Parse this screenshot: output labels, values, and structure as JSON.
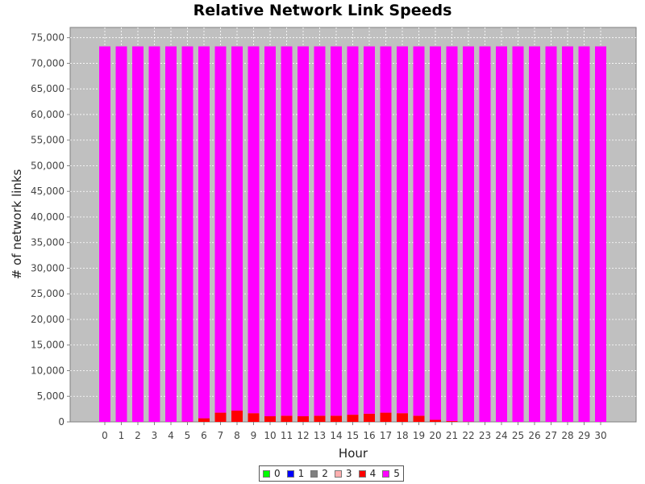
{
  "chart_data": {
    "type": "bar",
    "stacked": true,
    "title": "Relative Network Link Speeds",
    "xlabel": "Hour",
    "ylabel": "# of network links",
    "ylim": [
      0,
      77000
    ],
    "yticks": [
      0,
      5000,
      10000,
      15000,
      20000,
      25000,
      30000,
      35000,
      40000,
      45000,
      50000,
      55000,
      60000,
      65000,
      70000,
      75000
    ],
    "ytick_labels": [
      "0",
      "5,000",
      "10,000",
      "15,000",
      "20,000",
      "25,000",
      "30,000",
      "35,000",
      "40,000",
      "45,000",
      "50,000",
      "55,000",
      "60,000",
      "65,000",
      "70,000",
      "75,000"
    ],
    "categories": [
      "0",
      "1",
      "2",
      "3",
      "4",
      "5",
      "6",
      "7",
      "8",
      "9",
      "10",
      "11",
      "12",
      "13",
      "14",
      "15",
      "16",
      "17",
      "18",
      "19",
      "20",
      "21",
      "22",
      "23",
      "24",
      "25",
      "26",
      "27",
      "28",
      "29",
      "30"
    ],
    "series": [
      {
        "name": "0",
        "color": "#00ff00",
        "values": [
          0,
          0,
          0,
          0,
          0,
          0,
          0,
          0,
          0,
          0,
          0,
          0,
          0,
          0,
          0,
          0,
          0,
          0,
          0,
          0,
          0,
          0,
          0,
          0,
          0,
          0,
          0,
          0,
          0,
          0,
          0
        ]
      },
      {
        "name": "1",
        "color": "#0000ff",
        "values": [
          0,
          0,
          0,
          0,
          0,
          0,
          0,
          0,
          0,
          0,
          0,
          0,
          0,
          0,
          0,
          0,
          0,
          0,
          0,
          0,
          0,
          0,
          0,
          0,
          0,
          0,
          0,
          0,
          0,
          0,
          0
        ]
      },
      {
        "name": "2",
        "color": "#808080",
        "values": [
          0,
          0,
          0,
          0,
          0,
          0,
          0,
          0,
          0,
          0,
          0,
          0,
          0,
          0,
          0,
          0,
          0,
          0,
          0,
          0,
          0,
          0,
          0,
          0,
          0,
          0,
          0,
          0,
          0,
          0,
          0
        ]
      },
      {
        "name": "3",
        "color": "#ffafaf",
        "values": [
          0,
          0,
          0,
          0,
          0,
          0,
          0,
          0,
          0,
          0,
          0,
          0,
          0,
          0,
          0,
          0,
          0,
          0,
          0,
          0,
          0,
          0,
          0,
          0,
          0,
          0,
          0,
          0,
          0,
          0,
          0
        ]
      },
      {
        "name": "4",
        "color": "#ff0000",
        "values": [
          0,
          0,
          0,
          0,
          0,
          50,
          700,
          1800,
          2200,
          1700,
          1100,
          1200,
          1100,
          1200,
          1200,
          1400,
          1600,
          1800,
          1700,
          1200,
          400,
          150,
          50,
          0,
          0,
          0,
          0,
          0,
          0,
          0,
          0
        ]
      },
      {
        "name": "5",
        "color": "#ff00ff",
        "values": [
          73300,
          73300,
          73300,
          73300,
          73300,
          73250,
          72600,
          71500,
          71100,
          71600,
          72200,
          72100,
          72200,
          72100,
          72100,
          71900,
          71700,
          71500,
          71600,
          72100,
          72900,
          73150,
          73250,
          73300,
          73300,
          73300,
          73300,
          73300,
          73300,
          73300,
          73300
        ]
      }
    ],
    "legend_position": "bottom",
    "grid": true,
    "plot_background": "#c0c0c0"
  }
}
